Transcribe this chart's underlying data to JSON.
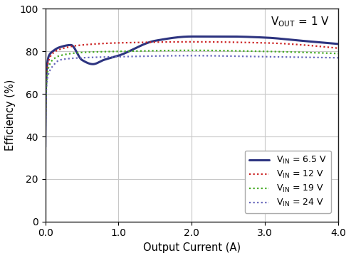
{
  "title": "",
  "xlabel": "Output Current (A)",
  "ylabel": "Efficiency (%)",
  "vout_label": "V$_{\\mathregular{OUT}}$ = 1 V",
  "xlim": [
    0,
    4.0
  ],
  "ylim": [
    0,
    100
  ],
  "xticks": [
    0,
    1.0,
    2.0,
    3.0,
    4.0
  ],
  "yticks": [
    0,
    20,
    40,
    60,
    80,
    100
  ],
  "grid_color": "#c8c8c8",
  "bg_color": "#ffffff",
  "series": [
    {
      "label_base": "V",
      "label_sub": "IN",
      "label_val": " = 6.5 V",
      "color": "#2d3480",
      "linewidth": 2.2,
      "style": "solid",
      "keypoints_x": [
        0.0,
        0.003,
        0.008,
        0.02,
        0.05,
        0.1,
        0.2,
        0.35,
        0.5,
        0.65,
        0.8,
        1.0,
        1.5,
        2.0,
        2.5,
        3.0,
        3.5,
        4.0
      ],
      "keypoints_y": [
        35,
        50,
        62,
        72,
        78,
        80,
        82,
        83,
        76,
        74,
        76,
        78,
        85,
        87,
        87,
        86.5,
        85,
        83.5
      ]
    },
    {
      "label_base": "V",
      "label_sub": "IN",
      "label_val": " = 12 V",
      "color": "#cc2222",
      "linewidth": 1.6,
      "style": "dotted",
      "keypoints_x": [
        0.0,
        0.003,
        0.008,
        0.02,
        0.05,
        0.1,
        0.2,
        0.5,
        1.0,
        2.0,
        3.0,
        4.0
      ],
      "keypoints_y": [
        35,
        48,
        60,
        70,
        76,
        79,
        81,
        83,
        84,
        84.5,
        84,
        81.5
      ]
    },
    {
      "label_base": "V",
      "label_sub": "IN",
      "label_val": " = 19 V",
      "color": "#44aa22",
      "linewidth": 1.6,
      "style": "dotted",
      "keypoints_x": [
        0.0,
        0.003,
        0.008,
        0.02,
        0.05,
        0.1,
        0.2,
        0.5,
        1.0,
        2.0,
        3.0,
        4.0
      ],
      "keypoints_y": [
        33,
        45,
        57,
        67,
        73,
        76,
        78,
        79.5,
        80,
        80.5,
        80,
        79.0
      ]
    },
    {
      "label_base": "V",
      "label_sub": "IN",
      "label_val": " = 24 V",
      "color": "#6666bb",
      "linewidth": 1.6,
      "style": "dotted",
      "keypoints_x": [
        0.0,
        0.003,
        0.008,
        0.02,
        0.05,
        0.1,
        0.2,
        0.5,
        1.0,
        2.0,
        3.0,
        4.0
      ],
      "keypoints_y": [
        32,
        43,
        55,
        65,
        70,
        73,
        76,
        77,
        77.5,
        78,
        77.5,
        77.0
      ]
    }
  ]
}
